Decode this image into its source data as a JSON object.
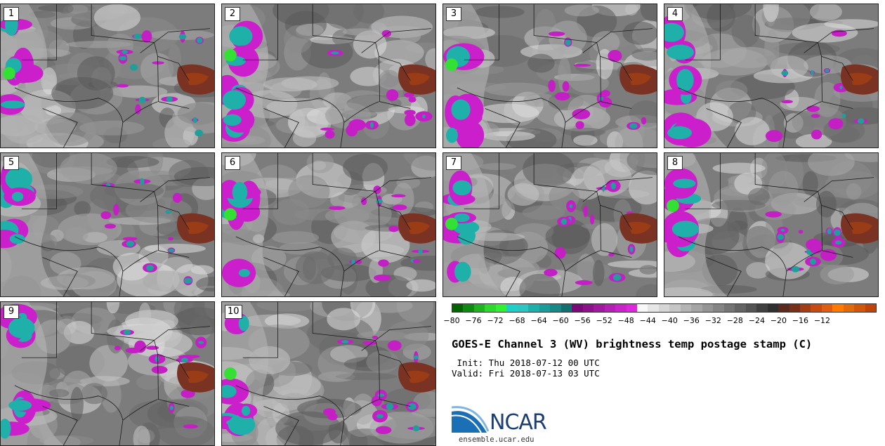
{
  "panels": [
    {
      "label": "1"
    },
    {
      "label": "2"
    },
    {
      "label": "3"
    },
    {
      "label": "4"
    },
    {
      "label": "5"
    },
    {
      "label": "6"
    },
    {
      "label": "7"
    },
    {
      "label": "8"
    },
    {
      "label": "9"
    },
    {
      "label": "10"
    }
  ],
  "colorbar": {
    "colors": [
      "#006400",
      "#108a10",
      "#1fb41f",
      "#2fd82f",
      "#33f033",
      "#20d0c8",
      "#2ec4c0",
      "#1fb0aa",
      "#1a9c98",
      "#178885",
      "#12706e",
      "#7a0a7a",
      "#8c128c",
      "#a01aa0",
      "#b41fb4",
      "#c824c8",
      "#dc29dc",
      "#f8f8f8",
      "#e6e6e6",
      "#d6d6d6",
      "#c6c6c6",
      "#b4b4b4",
      "#a4a4a4",
      "#949494",
      "#848484",
      "#747474",
      "#646464",
      "#545454",
      "#404040",
      "#303030",
      "#5a2a1e",
      "#7a3018",
      "#a33e14",
      "#c64c12",
      "#e05e10",
      "#ff7a00",
      "#e06a0c",
      "#d0560a",
      "#c04408"
    ],
    "tick_labels": [
      "−80",
      "−76",
      "−72",
      "−68",
      "−64",
      "−60",
      "−56",
      "−52",
      "−48",
      "−44",
      "−40",
      "−36",
      "−32",
      "−28",
      "−24",
      "−20",
      "−16",
      "−12"
    ]
  },
  "title": "GOES-E Channel 3 (WV) brightness temp postage stamp (C)",
  "init_line": " Init: Thu 2018-07-12 00 UTC",
  "valid_line": "Valid: Fri 2018-07-13 03 UTC",
  "logo": {
    "name": "NCAR",
    "url": "ensemble.ucar.edu"
  }
}
